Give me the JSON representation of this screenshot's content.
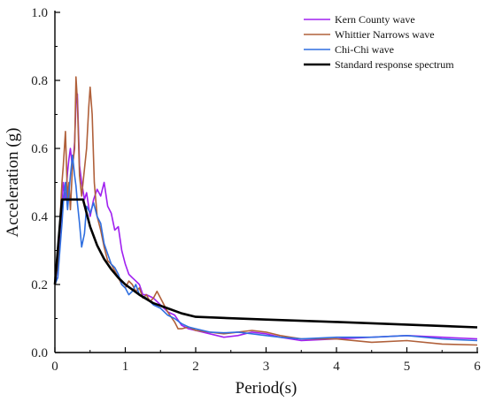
{
  "chart_data": {
    "type": "line",
    "xlabel": "Period(s)",
    "ylabel": "Acceleration (g)",
    "xlim": [
      0,
      6
    ],
    "ylim": [
      0,
      1.0
    ],
    "x_ticks": [
      "0",
      "1",
      "2",
      "3",
      "4",
      "5",
      "6"
    ],
    "y_ticks": [
      "0.0",
      "0.2",
      "0.4",
      "0.6",
      "0.8",
      "1.0"
    ],
    "grid": false,
    "legend_position": "top-right",
    "series": [
      {
        "name": "Kern County wave",
        "color": "#a020f0",
        "points": [
          [
            0,
            0.21
          ],
          [
            0.04,
            0.22
          ],
          [
            0.07,
            0.35
          ],
          [
            0.1,
            0.42
          ],
          [
            0.12,
            0.5
          ],
          [
            0.15,
            0.45
          ],
          [
            0.18,
            0.53
          ],
          [
            0.2,
            0.57
          ],
          [
            0.22,
            0.6
          ],
          [
            0.25,
            0.54
          ],
          [
            0.28,
            0.62
          ],
          [
            0.3,
            0.73
          ],
          [
            0.32,
            0.76
          ],
          [
            0.35,
            0.55
          ],
          [
            0.38,
            0.5
          ],
          [
            0.42,
            0.45
          ],
          [
            0.45,
            0.47
          ],
          [
            0.5,
            0.4
          ],
          [
            0.55,
            0.45
          ],
          [
            0.6,
            0.48
          ],
          [
            0.65,
            0.46
          ],
          [
            0.7,
            0.5
          ],
          [
            0.75,
            0.43
          ],
          [
            0.8,
            0.41
          ],
          [
            0.85,
            0.36
          ],
          [
            0.9,
            0.37
          ],
          [
            0.95,
            0.3
          ],
          [
            1.0,
            0.26
          ],
          [
            1.05,
            0.23
          ],
          [
            1.1,
            0.22
          ],
          [
            1.15,
            0.21
          ],
          [
            1.2,
            0.2
          ],
          [
            1.25,
            0.17
          ],
          [
            1.3,
            0.17
          ],
          [
            1.4,
            0.16
          ],
          [
            1.5,
            0.14
          ],
          [
            1.6,
            0.12
          ],
          [
            1.7,
            0.11
          ],
          [
            1.8,
            0.08
          ],
          [
            1.9,
            0.07
          ],
          [
            2.0,
            0.065
          ],
          [
            2.2,
            0.055
          ],
          [
            2.4,
            0.045
          ],
          [
            2.6,
            0.05
          ],
          [
            2.8,
            0.06
          ],
          [
            3.0,
            0.055
          ],
          [
            3.2,
            0.045
          ],
          [
            3.5,
            0.035
          ],
          [
            4.0,
            0.04
          ],
          [
            4.5,
            0.045
          ],
          [
            5.0,
            0.05
          ],
          [
            5.5,
            0.045
          ],
          [
            6.0,
            0.04
          ]
        ]
      },
      {
        "name": "Whittier Narrows wave",
        "color": "#b0603a",
        "points": [
          [
            0,
            0.22
          ],
          [
            0.04,
            0.25
          ],
          [
            0.07,
            0.38
          ],
          [
            0.1,
            0.5
          ],
          [
            0.12,
            0.55
          ],
          [
            0.15,
            0.65
          ],
          [
            0.18,
            0.45
          ],
          [
            0.2,
            0.5
          ],
          [
            0.22,
            0.42
          ],
          [
            0.25,
            0.55
          ],
          [
            0.28,
            0.6
          ],
          [
            0.3,
            0.81
          ],
          [
            0.32,
            0.74
          ],
          [
            0.35,
            0.52
          ],
          [
            0.38,
            0.46
          ],
          [
            0.4,
            0.5
          ],
          [
            0.43,
            0.56
          ],
          [
            0.45,
            0.6
          ],
          [
            0.48,
            0.72
          ],
          [
            0.5,
            0.78
          ],
          [
            0.53,
            0.7
          ],
          [
            0.56,
            0.5
          ],
          [
            0.6,
            0.4
          ],
          [
            0.65,
            0.36
          ],
          [
            0.7,
            0.31
          ],
          [
            0.75,
            0.27
          ],
          [
            0.8,
            0.26
          ],
          [
            0.85,
            0.24
          ],
          [
            0.9,
            0.22
          ],
          [
            0.95,
            0.2
          ],
          [
            1.0,
            0.19
          ],
          [
            1.05,
            0.21
          ],
          [
            1.1,
            0.2
          ],
          [
            1.15,
            0.18
          ],
          [
            1.2,
            0.19
          ],
          [
            1.25,
            0.16
          ],
          [
            1.3,
            0.17
          ],
          [
            1.35,
            0.15
          ],
          [
            1.4,
            0.16
          ],
          [
            1.45,
            0.18
          ],
          [
            1.5,
            0.16
          ],
          [
            1.6,
            0.12
          ],
          [
            1.7,
            0.09
          ],
          [
            1.75,
            0.07
          ],
          [
            1.8,
            0.07
          ],
          [
            1.9,
            0.075
          ],
          [
            2.0,
            0.065
          ],
          [
            2.2,
            0.06
          ],
          [
            2.4,
            0.055
          ],
          [
            2.6,
            0.06
          ],
          [
            2.8,
            0.065
          ],
          [
            3.0,
            0.06
          ],
          [
            3.2,
            0.05
          ],
          [
            3.5,
            0.04
          ],
          [
            4.0,
            0.04
          ],
          [
            4.5,
            0.03
          ],
          [
            5.0,
            0.035
          ],
          [
            5.5,
            0.025
          ],
          [
            6.0,
            0.022
          ]
        ]
      },
      {
        "name": "Chi-Chi wave",
        "color": "#2f6fe0",
        "points": [
          [
            0,
            0.2
          ],
          [
            0.04,
            0.22
          ],
          [
            0.07,
            0.3
          ],
          [
            0.1,
            0.38
          ],
          [
            0.12,
            0.44
          ],
          [
            0.15,
            0.5
          ],
          [
            0.18,
            0.42
          ],
          [
            0.2,
            0.47
          ],
          [
            0.22,
            0.52
          ],
          [
            0.25,
            0.58
          ],
          [
            0.28,
            0.52
          ],
          [
            0.3,
            0.49
          ],
          [
            0.32,
            0.44
          ],
          [
            0.35,
            0.38
          ],
          [
            0.38,
            0.31
          ],
          [
            0.42,
            0.35
          ],
          [
            0.45,
            0.43
          ],
          [
            0.5,
            0.41
          ],
          [
            0.55,
            0.44
          ],
          [
            0.6,
            0.4
          ],
          [
            0.65,
            0.38
          ],
          [
            0.7,
            0.32
          ],
          [
            0.75,
            0.29
          ],
          [
            0.8,
            0.26
          ],
          [
            0.85,
            0.25
          ],
          [
            0.9,
            0.23
          ],
          [
            0.95,
            0.2
          ],
          [
            1.0,
            0.19
          ],
          [
            1.05,
            0.17
          ],
          [
            1.1,
            0.18
          ],
          [
            1.15,
            0.2
          ],
          [
            1.2,
            0.17
          ],
          [
            1.3,
            0.16
          ],
          [
            1.4,
            0.14
          ],
          [
            1.5,
            0.13
          ],
          [
            1.6,
            0.11
          ],
          [
            1.7,
            0.1
          ],
          [
            1.8,
            0.085
          ],
          [
            1.9,
            0.075
          ],
          [
            2.0,
            0.07
          ],
          [
            2.2,
            0.06
          ],
          [
            2.4,
            0.058
          ],
          [
            2.6,
            0.06
          ],
          [
            2.8,
            0.055
          ],
          [
            3.0,
            0.05
          ],
          [
            3.2,
            0.045
          ],
          [
            3.5,
            0.04
          ],
          [
            4.0,
            0.045
          ],
          [
            4.5,
            0.045
          ],
          [
            5.0,
            0.05
          ],
          [
            5.5,
            0.04
          ],
          [
            6.0,
            0.035
          ]
        ]
      },
      {
        "name": "Standard response spectrum",
        "color": "#000000",
        "points": [
          [
            0,
            0.2
          ],
          [
            0.1,
            0.45
          ],
          [
            0.4,
            0.45
          ],
          [
            0.5,
            0.37
          ],
          [
            0.6,
            0.315
          ],
          [
            0.7,
            0.275
          ],
          [
            0.8,
            0.245
          ],
          [
            0.9,
            0.22
          ],
          [
            1.0,
            0.2
          ],
          [
            1.2,
            0.17
          ],
          [
            1.4,
            0.145
          ],
          [
            1.6,
            0.13
          ],
          [
            1.8,
            0.115
          ],
          [
            2.0,
            0.105
          ],
          [
            3.0,
            0.097
          ],
          [
            4.0,
            0.09
          ],
          [
            5.0,
            0.082
          ],
          [
            6.0,
            0.074
          ]
        ]
      }
    ]
  }
}
